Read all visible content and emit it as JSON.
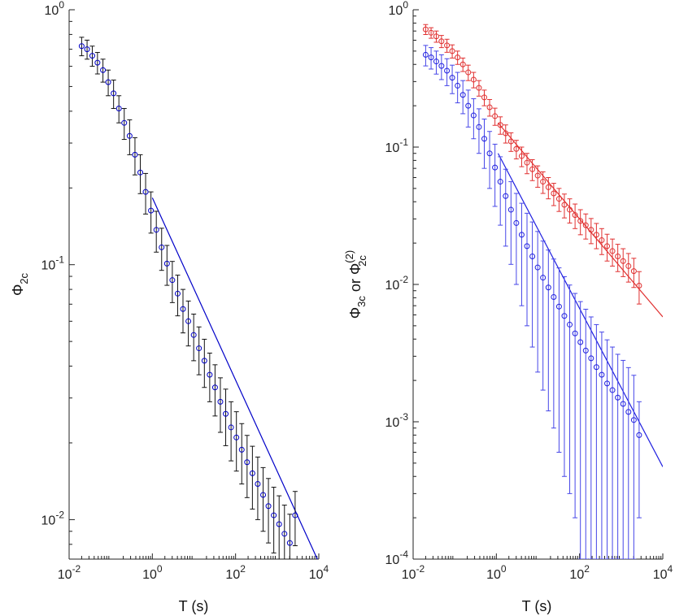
{
  "chart_data": [
    {
      "type": "scatter",
      "xscale": "log",
      "yscale": "log",
      "xlim": [
        0.01,
        10000
      ],
      "ylim": [
        0.007,
        1
      ],
      "xlabel": "T (s)",
      "ylabel": "Φ",
      "ylabel_sub": "2c",
      "grid": false,
      "xticks": [
        {
          "value": 0.01,
          "base": "10",
          "exp": "-2"
        },
        {
          "value": 1,
          "base": "10",
          "exp": "0"
        },
        {
          "value": 100,
          "base": "10",
          "exp": "2"
        },
        {
          "value": 10000,
          "base": "10",
          "exp": "4"
        }
      ],
      "yticks": [
        {
          "value": 0.01,
          "base": "10",
          "exp": "-2"
        },
        {
          "value": 0.1,
          "base": "10",
          "exp": "-1"
        },
        {
          "value": 1,
          "base": "10",
          "exp": "0"
        }
      ],
      "series": [
        {
          "color": "#0000c8",
          "errcolor": "#111111",
          "x": [
            0.02,
            0.027,
            0.036,
            0.048,
            0.065,
            0.087,
            0.117,
            0.157,
            0.211,
            0.284,
            0.382,
            0.513,
            0.689,
            0.926,
            1.245,
            1.672,
            2.247,
            3.02,
            4.06,
            5.45,
            7.33,
            9.85,
            13.2,
            17.8,
            23.9,
            32.1,
            43.1,
            57.9,
            77.9,
            104.7,
            140.7,
            189,
            254,
            341,
            459,
            616,
            828,
            1113,
            1496,
            2010,
            2700
          ],
          "y": [
            0.72,
            0.7,
            0.66,
            0.62,
            0.58,
            0.52,
            0.47,
            0.41,
            0.36,
            0.32,
            0.27,
            0.23,
            0.193,
            0.163,
            0.137,
            0.117,
            0.101,
            0.087,
            0.077,
            0.067,
            0.06,
            0.053,
            0.047,
            0.042,
            0.037,
            0.033,
            0.029,
            0.026,
            0.023,
            0.021,
            0.0188,
            0.0168,
            0.0152,
            0.0138,
            0.0125,
            0.0113,
            0.0104,
            0.0096,
            0.0088,
            0.0081,
            0.0104
          ],
          "err": [
            0.06,
            0.06,
            0.06,
            0.06,
            0.06,
            0.06,
            0.06,
            0.05,
            0.05,
            0.05,
            0.045,
            0.04,
            0.035,
            0.03,
            0.025,
            0.022,
            0.018,
            0.016,
            0.014,
            0.013,
            0.012,
            0.011,
            0.01,
            0.009,
            0.008,
            0.0075,
            0.007,
            0.0065,
            0.006,
            0.0055,
            0.005,
            0.0046,
            0.0042,
            0.0038,
            0.0035,
            0.0032,
            0.003,
            0.0028,
            0.0026,
            0.0024,
            0.0025
          ]
        }
      ],
      "fits": [
        {
          "color": "#0000c8",
          "x": [
            1.0,
            10000
          ],
          "y": [
            0.183,
            0.0068
          ]
        }
      ]
    },
    {
      "type": "scatter",
      "xscale": "log",
      "yscale": "log",
      "xlim": [
        0.01,
        10000
      ],
      "ylim": [
        0.0001,
        1
      ],
      "xlabel": "T (s)",
      "ylabel_main": "Φ",
      "ylabel_sub1": "3c",
      "ylabel_or": "or",
      "ylabel_main2": "Φ",
      "ylabel_sub2": "2c",
      "ylabel_sup2": "(2)",
      "grid": false,
      "xticks": [
        {
          "value": 0.01,
          "base": "10",
          "exp": "-2"
        },
        {
          "value": 1,
          "base": "10",
          "exp": "0"
        },
        {
          "value": 100,
          "base": "10",
          "exp": "2"
        },
        {
          "value": 10000,
          "base": "10",
          "exp": "4"
        }
      ],
      "yticks": [
        {
          "value": 0.0001,
          "base": "10",
          "exp": "-4"
        },
        {
          "value": 0.001,
          "base": "10",
          "exp": "-3"
        },
        {
          "value": 0.01,
          "base": "10",
          "exp": "-2"
        },
        {
          "value": 0.1,
          "base": "10",
          "exp": "-1"
        },
        {
          "value": 1,
          "base": "10",
          "exp": "0"
        }
      ],
      "series": [
        {
          "color": "#e03030",
          "errcolor": "#e03030",
          "x": [
            0.02,
            0.027,
            0.036,
            0.048,
            0.065,
            0.087,
            0.117,
            0.157,
            0.211,
            0.284,
            0.382,
            0.513,
            0.689,
            0.926,
            1.245,
            1.672,
            2.247,
            3.02,
            4.06,
            5.45,
            7.33,
            9.85,
            13.2,
            17.8,
            23.9,
            32.1,
            43.1,
            57.9,
            77.9,
            104.7,
            140.7,
            189,
            254,
            341,
            459,
            616,
            828,
            1113,
            1496,
            2010,
            2700
          ],
          "y": [
            0.72,
            0.68,
            0.64,
            0.59,
            0.55,
            0.5,
            0.45,
            0.4,
            0.35,
            0.31,
            0.27,
            0.23,
            0.195,
            0.168,
            0.145,
            0.126,
            0.11,
            0.097,
            0.086,
            0.077,
            0.069,
            0.062,
            0.056,
            0.051,
            0.046,
            0.042,
            0.038,
            0.035,
            0.032,
            0.029,
            0.027,
            0.025,
            0.023,
            0.021,
            0.019,
            0.0175,
            0.016,
            0.0148,
            0.0136,
            0.0125,
            0.0098
          ],
          "err": [
            0.06,
            0.06,
            0.06,
            0.06,
            0.06,
            0.055,
            0.05,
            0.045,
            0.045,
            0.04,
            0.035,
            0.03,
            0.027,
            0.024,
            0.021,
            0.019,
            0.017,
            0.015,
            0.014,
            0.013,
            0.012,
            0.011,
            0.01,
            0.009,
            0.0085,
            0.008,
            0.0075,
            0.007,
            0.0065,
            0.006,
            0.0056,
            0.0052,
            0.0048,
            0.0045,
            0.0042,
            0.0039,
            0.0036,
            0.0034,
            0.0032,
            0.003,
            0.0026
          ]
        },
        {
          "color": "#2020e0",
          "errcolor": "#4646e8",
          "x": [
            0.02,
            0.027,
            0.036,
            0.048,
            0.065,
            0.087,
            0.117,
            0.157,
            0.211,
            0.284,
            0.382,
            0.513,
            0.689,
            0.926,
            1.245,
            1.672,
            2.247,
            3.02,
            4.06,
            5.45,
            7.33,
            9.85,
            13.2,
            17.8,
            23.9,
            32.1,
            43.1,
            57.9,
            77.9,
            104.7,
            140.7,
            189,
            254,
            341,
            459,
            616,
            828,
            1113,
            1496,
            2010,
            2700
          ],
          "y": [
            0.47,
            0.45,
            0.42,
            0.39,
            0.36,
            0.32,
            0.28,
            0.24,
            0.2,
            0.17,
            0.14,
            0.115,
            0.09,
            0.071,
            0.056,
            0.044,
            0.035,
            0.028,
            0.023,
            0.019,
            0.016,
            0.0133,
            0.0112,
            0.0095,
            0.0081,
            0.0069,
            0.0059,
            0.0051,
            0.0044,
            0.0038,
            0.0033,
            0.0029,
            0.0025,
            0.0022,
            0.0019,
            0.0017,
            0.0015,
            0.00135,
            0.00118,
            0.00103,
            0.0008
          ],
          "err": [
            0.08,
            0.08,
            0.08,
            0.08,
            0.08,
            0.075,
            0.07,
            0.065,
            0.06,
            0.055,
            0.05,
            0.045,
            0.04,
            0.034,
            0.029,
            0.025,
            0.021,
            0.018,
            0.016,
            0.014,
            0.0125,
            0.011,
            0.0095,
            0.0083,
            0.0072,
            0.0063,
            0.0055,
            0.0048,
            0.0042,
            0.0037,
            0.0033,
            0.0029,
            0.0026,
            0.0023,
            0.00205,
            0.0018,
            0.0016,
            0.00145,
            0.0013,
            0.00115,
            0.0006
          ]
        }
      ],
      "fits": [
        {
          "color": "#e03030",
          "x": [
            1.1,
            10000
          ],
          "y": [
            0.15,
            0.0058
          ]
        },
        {
          "color": "#2020e0",
          "x": [
            1.1,
            10000
          ],
          "y": [
            0.09,
            0.00047
          ]
        }
      ]
    }
  ]
}
